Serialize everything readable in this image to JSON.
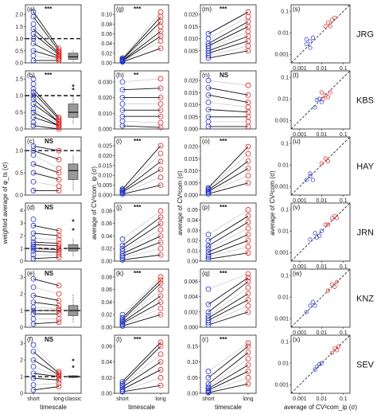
{
  "figure": {
    "sites": [
      "JRG",
      "KBS",
      "HAY",
      "JRN",
      "KNZ",
      "SEV"
    ],
    "x_titles": [
      "timescale",
      "timescale",
      "timescale",
      "average of CV²com_ip (σ)"
    ],
    "y_titles": [
      "weighted average of φ_ts (σ)",
      "average of CV²com_ip (σ)",
      "average of CV²com (σ)",
      "average of CV²com (σ)"
    ],
    "colors": {
      "short": "#2233cc",
      "long": "#dd2222",
      "trend": "#111111",
      "faint": "#bbbbbb",
      "box": "#999999"
    }
  },
  "chart_data": [
    {
      "type": "scatter",
      "column": 1,
      "x_categories": [
        "short",
        "long",
        "classic"
      ],
      "panels": [
        {
          "label": "(a)",
          "sig": "***",
          "site": "JRG",
          "yticks": [
            "0.0",
            "0.5",
            "1.0",
            "1.5",
            "2.0"
          ],
          "ylim": [
            0,
            2.2
          ],
          "ref_line": 1.0,
          "short": [
            0.1,
            0.3,
            0.5,
            0.8,
            1.0,
            1.2,
            1.4,
            1.6,
            1.9,
            2.1
          ],
          "long": [
            0.1,
            0.15,
            0.2,
            0.25,
            0.3,
            0.35,
            0.4,
            0.45,
            0.5,
            0.6
          ],
          "box": {
            "q1": 0.15,
            "median": 0.25,
            "q3": 0.4,
            "min": 0.05,
            "max": 0.55
          },
          "outliers": []
        },
        {
          "label": "(b)",
          "sig": "***",
          "site": "KBS",
          "yticks": [
            "0.0",
            "0.5",
            "1.0",
            "1.5"
          ],
          "ylim": [
            0,
            1.6
          ],
          "ref_line": 1.0,
          "short": [
            0.1,
            0.2,
            0.35,
            0.5,
            0.6,
            0.75,
            0.9,
            1.0,
            1.1,
            1.2,
            1.35,
            1.5
          ],
          "long": [
            0.0,
            0.05,
            0.1,
            0.1,
            0.15,
            0.2,
            0.2,
            0.25,
            0.3,
            0.35
          ],
          "box": {
            "q1": 0.35,
            "median": 0.5,
            "q3": 0.75,
            "min": 0.15,
            "max": 1.0
          },
          "outliers": [
            1.2,
            1.3
          ]
        },
        {
          "label": "(c)",
          "sig": "NS",
          "site": "HAY",
          "yticks": [
            "0.0",
            "0.5",
            "1.0"
          ],
          "ylim": [
            0,
            1.2
          ],
          "ref_line": 1.0,
          "short": [
            0.1,
            0.3,
            0.5,
            0.7,
            0.9,
            1.0,
            1.1
          ],
          "long": [
            0.1,
            0.2,
            0.35,
            0.5,
            0.6,
            0.8,
            1.0
          ],
          "box": {
            "q1": 0.35,
            "median": 0.55,
            "q3": 0.7,
            "min": 0.1,
            "max": 0.9
          },
          "outliers": []
        },
        {
          "label": "(d)",
          "sig": "NS",
          "site": "JRN",
          "yticks": [
            "0",
            "1",
            "2",
            "3",
            "4"
          ],
          "ylim": [
            0,
            4.2
          ],
          "ref_line": 1.0,
          "short": [
            0.2,
            0.5,
            0.8,
            1.0,
            1.1,
            1.3,
            1.5,
            1.8,
            2.2,
            2.8,
            3.3
          ],
          "long": [
            0.3,
            0.5,
            0.7,
            0.9,
            1.0,
            1.2,
            1.4,
            1.7,
            2.0,
            2.4
          ],
          "box": {
            "q1": 0.8,
            "median": 1.0,
            "q3": 1.3,
            "min": 0.4,
            "max": 1.8
          },
          "outliers": [
            2.5,
            3.2
          ]
        },
        {
          "label": "(e)",
          "sig": "NS",
          "site": "KNZ",
          "yticks": [
            "0",
            "1",
            "2",
            "3"
          ],
          "ylim": [
            0,
            3.2
          ],
          "ref_line": 1.0,
          "short": [
            0.2,
            0.5,
            0.8,
            1.0,
            1.2,
            1.5,
            1.9,
            2.4,
            2.9
          ],
          "long": [
            0.3,
            0.5,
            0.8,
            1.0,
            1.1,
            1.3,
            1.6,
            2.0,
            2.5
          ],
          "box": {
            "q1": 0.7,
            "median": 1.0,
            "q3": 1.3,
            "min": 0.3,
            "max": 2.0
          },
          "outliers": []
        },
        {
          "label": "(f)",
          "sig": "NS",
          "site": "SEV",
          "yticks": [
            "0",
            "1",
            "2",
            "3"
          ],
          "ylim": [
            0,
            3.2
          ],
          "ref_line": 1.0,
          "short": [
            0.2,
            0.5,
            0.9,
            1.2,
            1.6,
            2.0,
            2.5,
            2.9
          ],
          "long": [
            0.4,
            0.6,
            0.8,
            1.0,
            1.0,
            1.1,
            1.2,
            1.3
          ],
          "box": {
            "q1": 0.95,
            "median": 1.0,
            "q3": 1.05,
            "min": 0.9,
            "max": 1.1
          },
          "outliers": [
            1.6,
            2.0
          ]
        }
      ]
    },
    {
      "type": "scatter",
      "column": 2,
      "x_categories": [
        "short",
        "long"
      ],
      "panels": [
        {
          "label": "(g)",
          "sig": "***",
          "yticks": [
            "0.00",
            "0.02",
            "0.04",
            "0.06",
            "0.08",
            "0.10"
          ],
          "ylim": [
            0,
            0.11
          ],
          "short": [
            0.002,
            0.003,
            0.004,
            0.005,
            0.006,
            0.007,
            0.008,
            0.01
          ],
          "long": [
            0.03,
            0.045,
            0.055,
            0.065,
            0.075,
            0.085,
            0.095,
            0.105
          ]
        },
        {
          "label": "(h)",
          "sig": "**",
          "yticks": [
            "0.000",
            "0.010",
            "0.020",
            "0.030"
          ],
          "ylim": [
            0,
            0.034
          ],
          "short": [
            0.002,
            0.005,
            0.008,
            0.012,
            0.016,
            0.02,
            0.025,
            0.03
          ],
          "long": [
            0.001,
            0.004,
            0.008,
            0.012,
            0.016,
            0.02,
            0.026,
            0.032
          ]
        },
        {
          "label": "(i)",
          "sig": "***",
          "yticks": [
            "0.000",
            "0.005",
            "0.010",
            "0.015",
            "0.020",
            "0.025"
          ],
          "ylim": [
            0,
            0.027
          ],
          "short": [
            0.0005,
            0.001,
            0.0015,
            0.002,
            0.0025,
            0.003
          ],
          "long": [
            0.005,
            0.009,
            0.013,
            0.017,
            0.021,
            0.025
          ]
        },
        {
          "label": "(j)",
          "sig": "***",
          "yticks": [
            "0.00",
            "0.02",
            "0.04",
            "0.06",
            "0.08"
          ],
          "ylim": [
            0,
            0.085
          ],
          "short": [
            0.002,
            0.005,
            0.008,
            0.012,
            0.016,
            0.02,
            0.025,
            0.035
          ],
          "long": [
            0.01,
            0.02,
            0.03,
            0.04,
            0.05,
            0.06,
            0.07,
            0.08
          ]
        },
        {
          "label": "(k)",
          "sig": "***",
          "yticks": [
            "0.00",
            "0.02",
            "0.04",
            "0.06",
            "0.08"
          ],
          "ylim": [
            0,
            0.085
          ],
          "short": [
            0.002,
            0.004,
            0.006,
            0.008,
            0.01,
            0.012,
            0.015,
            0.02
          ],
          "long": [
            0.02,
            0.03,
            0.04,
            0.05,
            0.06,
            0.07,
            0.075,
            0.08
          ]
        },
        {
          "label": "(l)",
          "sig": "***",
          "yticks": [
            "0.00",
            "0.02",
            "0.04",
            "0.06"
          ],
          "ylim": [
            0,
            0.068
          ],
          "short": [
            0.002,
            0.003,
            0.005,
            0.008,
            0.01,
            0.012,
            0.015
          ],
          "long": [
            0.01,
            0.02,
            0.03,
            0.04,
            0.05,
            0.06,
            0.065
          ]
        }
      ]
    },
    {
      "type": "scatter",
      "column": 3,
      "x_categories": [
        "short",
        "long"
      ],
      "panels": [
        {
          "label": "(m)",
          "sig": "***",
          "yticks": [
            "0.005",
            "0.010",
            "0.015",
            "0.020"
          ],
          "ylim": [
            0,
            0.022
          ],
          "short": [
            0.002,
            0.003,
            0.004,
            0.005,
            0.006,
            0.007,
            0.008,
            0.01,
            0.012
          ],
          "long": [
            0.005,
            0.007,
            0.009,
            0.011,
            0.013,
            0.015,
            0.017,
            0.019,
            0.021
          ]
        },
        {
          "label": "(n)",
          "sig": "NS",
          "yticks": [
            "0.000",
            "0.005",
            "0.010",
            "0.015",
            "0.020"
          ],
          "ylim": [
            0,
            0.022
          ],
          "short": [
            0.001,
            0.003,
            0.005,
            0.008,
            0.011,
            0.014,
            0.017,
            0.02
          ],
          "long": [
            0.001,
            0.003,
            0.005,
            0.007,
            0.009,
            0.011,
            0.014,
            0.018
          ]
        },
        {
          "label": "(o)",
          "sig": "***",
          "yticks": [
            "0.000",
            "0.005",
            "0.010",
            "0.015",
            "0.020"
          ],
          "ylim": [
            0,
            0.022
          ],
          "short": [
            0.0005,
            0.001,
            0.0015,
            0.002,
            0.0025,
            0.003
          ],
          "long": [
            0.005,
            0.008,
            0.011,
            0.014,
            0.017,
            0.02
          ]
        },
        {
          "label": "(p)",
          "sig": "***",
          "yticks": [
            "0.00",
            "0.01",
            "0.02",
            "0.03",
            "0.04",
            "0.05"
          ],
          "ylim": [
            0,
            0.052
          ],
          "short": [
            0.002,
            0.004,
            0.006,
            0.009,
            0.012,
            0.015,
            0.02,
            0.026
          ],
          "long": [
            0.008,
            0.014,
            0.02,
            0.026,
            0.032,
            0.038,
            0.044,
            0.05
          ]
        },
        {
          "label": "(q)",
          "sig": "***",
          "yticks": [
            "0.000",
            "0.002",
            "0.004",
            "0.006"
          ],
          "ylim": [
            0,
            0.007
          ],
          "short": [
            0.0003,
            0.0006,
            0.0009,
            0.0012,
            0.0015,
            0.002,
            0.003,
            0.005
          ],
          "long": [
            0.002,
            0.0028,
            0.0036,
            0.0044,
            0.0052,
            0.006,
            0.0065,
            0.007
          ]
        },
        {
          "label": "(r)",
          "sig": "***",
          "yticks": [
            "0.00",
            "0.05",
            "0.10",
            "0.15"
          ],
          "ylim": [
            0,
            0.17
          ],
          "short": [
            0.002,
            0.005,
            0.01,
            0.015,
            0.02,
            0.03,
            0.05,
            0.07
          ],
          "long": [
            0.03,
            0.05,
            0.07,
            0.09,
            0.11,
            0.13,
            0.15,
            0.16
          ]
        }
      ]
    },
    {
      "type": "scatter",
      "column": 4,
      "scale": "log",
      "panels": [
        {
          "label": "(s)",
          "site": "JRG",
          "xticks": [
            "0.001",
            "0.01",
            "0.1"
          ],
          "yticks": [
            "0.001",
            "0.01",
            "0.1"
          ],
          "short_points": [
            [
              0.002,
              0.003
            ],
            [
              0.003,
              0.004
            ],
            [
              0.004,
              0.006
            ],
            [
              0.002,
              0.005
            ],
            [
              0.003,
              0.002
            ]
          ],
          "long_points": [
            [
              0.02,
              0.03
            ],
            [
              0.03,
              0.04
            ],
            [
              0.015,
              0.02
            ],
            [
              0.025,
              0.02
            ],
            [
              0.04,
              0.05
            ]
          ]
        },
        {
          "label": "(t)",
          "site": "KBS",
          "xticks": [
            "0.001",
            "0.01",
            "0.1"
          ],
          "yticks": [
            "0.001",
            "0.01",
            "0.1"
          ],
          "short_points": [
            [
              0.005,
              0.004
            ],
            [
              0.008,
              0.01
            ],
            [
              0.01,
              0.007
            ],
            [
              0.006,
              0.009
            ]
          ],
          "long_points": [
            [
              0.012,
              0.01
            ],
            [
              0.015,
              0.015
            ],
            [
              0.02,
              0.012
            ],
            [
              0.01,
              0.02
            ],
            [
              0.025,
              0.02
            ]
          ]
        },
        {
          "label": "(u)",
          "site": "HAY",
          "xticks": [
            "0.001",
            "0.01",
            "0.1"
          ],
          "yticks": [
            "0.001",
            "0.01",
            "0.1"
          ],
          "short_points": [
            [
              0.002,
              0.002
            ],
            [
              0.003,
              0.003
            ],
            [
              0.004,
              0.002
            ],
            [
              0.003,
              0.004
            ]
          ],
          "long_points": [
            [
              0.01,
              0.012
            ],
            [
              0.015,
              0.02
            ],
            [
              0.02,
              0.015
            ]
          ]
        },
        {
          "label": "(v)",
          "site": "JRN",
          "xticks": [
            "0.001",
            "0.01",
            "0.1"
          ],
          "yticks": [
            "0.001",
            "0.01",
            "0.1"
          ],
          "short_points": [
            [
              0.003,
              0.004
            ],
            [
              0.006,
              0.005
            ],
            [
              0.01,
              0.01
            ],
            [
              0.005,
              0.008
            ],
            [
              0.008,
              0.006
            ]
          ],
          "long_points": [
            [
              0.02,
              0.02
            ],
            [
              0.03,
              0.04
            ],
            [
              0.05,
              0.04
            ],
            [
              0.015,
              0.02
            ],
            [
              0.04,
              0.05
            ]
          ]
        },
        {
          "label": "(w)",
          "site": "KNZ",
          "xticks": [
            "0.001",
            "0.01",
            "0.1"
          ],
          "yticks": [
            "0.001",
            "0.01",
            "0.1"
          ],
          "short_points": [
            [
              0.002,
              0.002
            ],
            [
              0.003,
              0.004
            ],
            [
              0.005,
              0.004
            ],
            [
              0.004,
              0.006
            ]
          ],
          "long_points": [
            [
              0.02,
              0.02
            ],
            [
              0.03,
              0.04
            ],
            [
              0.04,
              0.03
            ],
            [
              0.05,
              0.05
            ]
          ]
        },
        {
          "label": "(x)",
          "site": "SEV",
          "xticks": [
            "0.001",
            "0.01",
            "0.1"
          ],
          "yticks": [
            "0.001",
            "0.01",
            "0.1"
          ],
          "short_points": [
            [
              0.005,
              0.005
            ],
            [
              0.008,
              0.009
            ],
            [
              0.01,
              0.01
            ],
            [
              0.006,
              0.007
            ]
          ],
          "long_points": [
            [
              0.03,
              0.03
            ],
            [
              0.04,
              0.05
            ],
            [
              0.06,
              0.06
            ],
            [
              0.05,
              0.04
            ]
          ]
        }
      ]
    }
  ]
}
